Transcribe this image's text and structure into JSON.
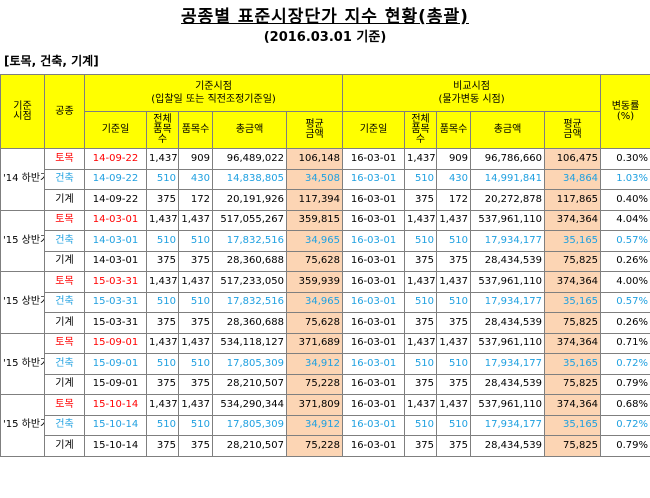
{
  "title": "공종별 표준시장단가 지수 현황(총괄)",
  "subtitle": "(2016.03.01 기준)",
  "category": "[토목, 건축, 기계]",
  "headers": {
    "period": "기준\n시점",
    "type": "공종",
    "base_group": "기준시점",
    "base_group_sub": "(입찰일 또는 직전조정기준일)",
    "cmp_group": "비교시점",
    "cmp_group_sub": "(물가변동 시점)",
    "change": "변동률\n(%)",
    "base_date": "기준일",
    "total_items": "전체\n품목수",
    "items": "품목수",
    "total_amount": "총금액",
    "avg_amount": "평균\n금액"
  },
  "groups": [
    {
      "period": "'14 하반기",
      "rows": [
        {
          "type": "토목",
          "base_date": "14-09-22",
          "bt": "1,437",
          "bi": "909",
          "ba": "96,489,022",
          "bavg": "106,148",
          "cd": "16-03-01",
          "ct": "1,437",
          "ci": "909",
          "ca": "96,786,660",
          "cavg": "106,475",
          "rate": "0.30%",
          "style": "red"
        },
        {
          "type": "건축",
          "base_date": "14-09-22",
          "bt": "510",
          "bi": "430",
          "ba": "14,838,805",
          "bavg": "34,508",
          "cd": "16-03-01",
          "ct": "510",
          "ci": "430",
          "ca": "14,991,841",
          "cavg": "34,864",
          "rate": "1.03%",
          "style": "blue"
        },
        {
          "type": "기계",
          "base_date": "14-09-22",
          "bt": "375",
          "bi": "172",
          "ba": "20,191,926",
          "bavg": "117,394",
          "cd": "16-03-01",
          "ct": "375",
          "ci": "172",
          "ca": "20,272,878",
          "cavg": "117,865",
          "rate": "0.40%",
          "style": ""
        }
      ]
    },
    {
      "period": "'15 상반기",
      "rows": [
        {
          "type": "토목",
          "base_date": "14-03-01",
          "bt": "1,437",
          "bi": "1,437",
          "ba": "517,055,267",
          "bavg": "359,815",
          "cd": "16-03-01",
          "ct": "1,437",
          "ci": "1,437",
          "ca": "537,961,110",
          "cavg": "374,364",
          "rate": "4.04%",
          "style": "red"
        },
        {
          "type": "건축",
          "base_date": "14-03-01",
          "bt": "510",
          "bi": "510",
          "ba": "17,832,516",
          "bavg": "34,965",
          "cd": "16-03-01",
          "ct": "510",
          "ci": "510",
          "ca": "17,934,177",
          "cavg": "35,165",
          "rate": "0.57%",
          "style": "blue"
        },
        {
          "type": "기계",
          "base_date": "14-03-01",
          "bt": "375",
          "bi": "375",
          "ba": "28,360,688",
          "bavg": "75,628",
          "cd": "16-03-01",
          "ct": "375",
          "ci": "375",
          "ca": "28,434,539",
          "cavg": "75,825",
          "rate": "0.26%",
          "style": ""
        }
      ]
    },
    {
      "period": "'15 상반기",
      "rows": [
        {
          "type": "토목",
          "base_date": "15-03-31",
          "bt": "1,437",
          "bi": "1,437",
          "ba": "517,233,050",
          "bavg": "359,939",
          "cd": "16-03-01",
          "ct": "1,437",
          "ci": "1,437",
          "ca": "537,961,110",
          "cavg": "374,364",
          "rate": "4.00%",
          "style": "red"
        },
        {
          "type": "건축",
          "base_date": "15-03-31",
          "bt": "510",
          "bi": "510",
          "ba": "17,832,516",
          "bavg": "34,965",
          "cd": "16-03-01",
          "ct": "510",
          "ci": "510",
          "ca": "17,934,177",
          "cavg": "35,165",
          "rate": "0.57%",
          "style": "blue"
        },
        {
          "type": "기계",
          "base_date": "15-03-31",
          "bt": "375",
          "bi": "375",
          "ba": "28,360,688",
          "bavg": "75,628",
          "cd": "16-03-01",
          "ct": "375",
          "ci": "375",
          "ca": "28,434,539",
          "cavg": "75,825",
          "rate": "0.26%",
          "style": ""
        }
      ]
    },
    {
      "period": "'15 하반기",
      "rows": [
        {
          "type": "토목",
          "base_date": "15-09-01",
          "bt": "1,437",
          "bi": "1,437",
          "ba": "534,118,127",
          "bavg": "371,689",
          "cd": "16-03-01",
          "ct": "1,437",
          "ci": "1,437",
          "ca": "537,961,110",
          "cavg": "374,364",
          "rate": "0.71%",
          "style": "red"
        },
        {
          "type": "건축",
          "base_date": "15-09-01",
          "bt": "510",
          "bi": "510",
          "ba": "17,805,309",
          "bavg": "34,912",
          "cd": "16-03-01",
          "ct": "510",
          "ci": "510",
          "ca": "17,934,177",
          "cavg": "35,165",
          "rate": "0.72%",
          "style": "blue"
        },
        {
          "type": "기계",
          "base_date": "15-09-01",
          "bt": "375",
          "bi": "375",
          "ba": "28,210,507",
          "bavg": "75,228",
          "cd": "16-03-01",
          "ct": "375",
          "ci": "375",
          "ca": "28,434,539",
          "cavg": "75,825",
          "rate": "0.79%",
          "style": ""
        }
      ]
    },
    {
      "period": "'15 하반기",
      "rows": [
        {
          "type": "토목",
          "base_date": "15-10-14",
          "bt": "1,437",
          "bi": "1,437",
          "ba": "534,290,344",
          "bavg": "371,809",
          "cd": "16-03-01",
          "ct": "1,437",
          "ci": "1,437",
          "ca": "537,961,110",
          "cavg": "374,364",
          "rate": "0.68%",
          "style": "red"
        },
        {
          "type": "건축",
          "base_date": "15-10-14",
          "bt": "510",
          "bi": "510",
          "ba": "17,805,309",
          "bavg": "34,912",
          "cd": "16-03-01",
          "ct": "510",
          "ci": "510",
          "ca": "17,934,177",
          "cavg": "35,165",
          "rate": "0.72%",
          "style": "blue"
        },
        {
          "type": "기계",
          "base_date": "15-10-14",
          "bt": "375",
          "bi": "375",
          "ba": "28,210,507",
          "bavg": "75,228",
          "cd": "16-03-01",
          "ct": "375",
          "ci": "375",
          "ca": "28,434,539",
          "cavg": "75,825",
          "rate": "0.79%",
          "style": ""
        }
      ]
    }
  ]
}
